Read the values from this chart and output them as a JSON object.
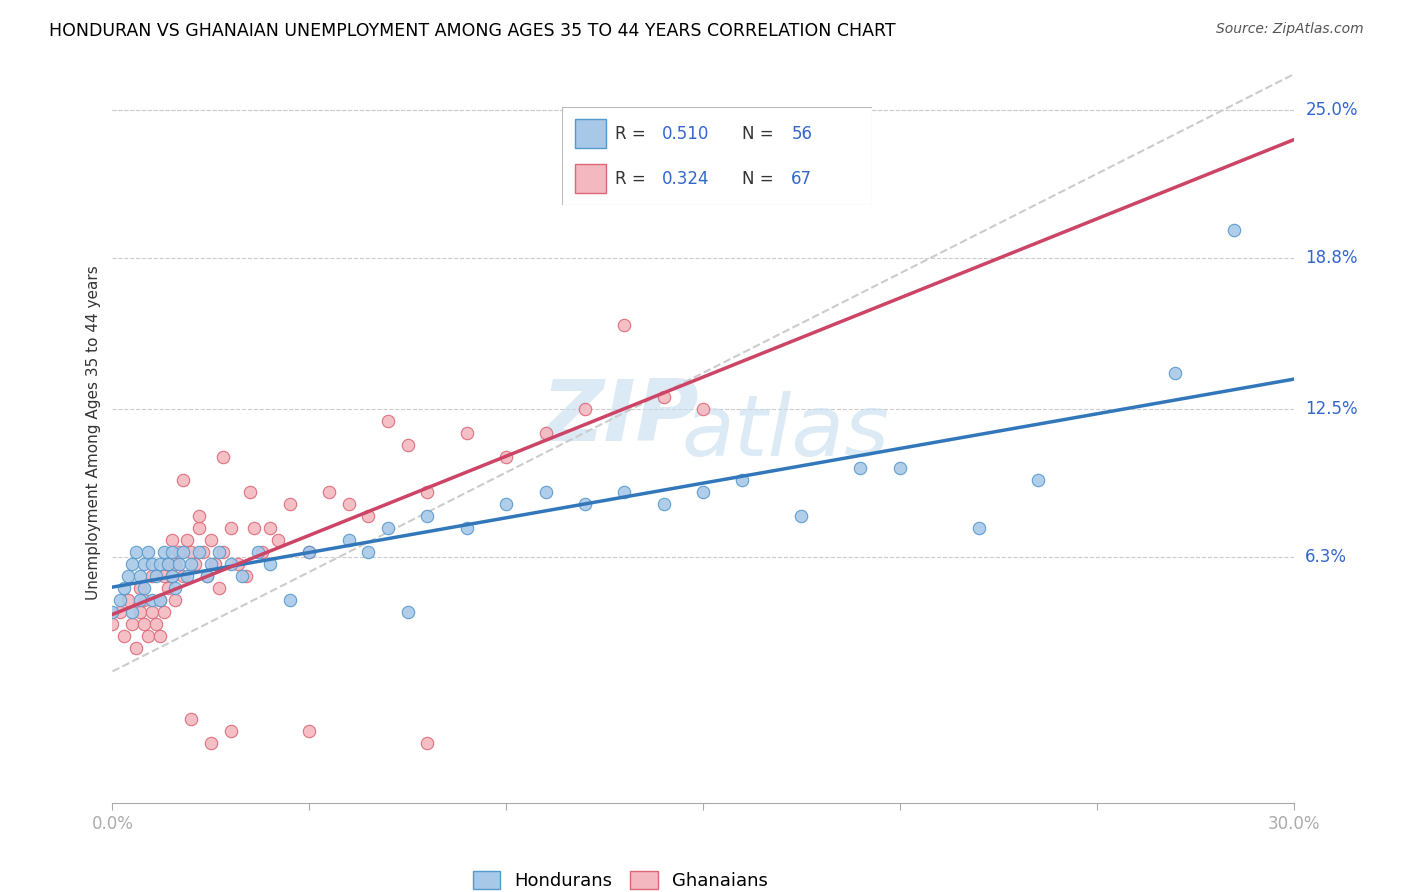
{
  "title": "HONDURAN VS GHANAIAN UNEMPLOYMENT AMONG AGES 35 TO 44 YEARS CORRELATION CHART",
  "source": "Source: ZipAtlas.com",
  "ylabel": "Unemployment Among Ages 35 to 44 years",
  "xlim": [
    0.0,
    0.3
  ],
  "ylim": [
    -0.04,
    0.27
  ],
  "y_tick_labels_right": [
    "25.0%",
    "18.8%",
    "12.5%",
    "6.3%"
  ],
  "y_tick_values_right": [
    0.25,
    0.188,
    0.125,
    0.063
  ],
  "honduran_color": "#a8c8e8",
  "ghanaian_color": "#f4b8c0",
  "honduran_edge_color": "#5599cc",
  "ghanaian_edge_color": "#dd6677",
  "honduran_line_color": "#3377bb",
  "ghanaian_line_color": "#cc4466",
  "diagonal_color": "#cccccc",
  "legend_text_color": "#3366cc",
  "R_honduran": "0.510",
  "N_honduran": "56",
  "R_ghanaian": "0.324",
  "N_ghanaian": "67",
  "watermark": "ZIPatlas",
  "honduran_scatter_x": [
    0.0,
    0.002,
    0.003,
    0.004,
    0.005,
    0.005,
    0.006,
    0.007,
    0.007,
    0.008,
    0.008,
    0.009,
    0.01,
    0.01,
    0.011,
    0.012,
    0.012,
    0.013,
    0.014,
    0.015,
    0.015,
    0.016,
    0.017,
    0.018,
    0.019,
    0.02,
    0.022,
    0.024,
    0.025,
    0.027,
    0.03,
    0.033,
    0.037,
    0.04,
    0.045,
    0.05,
    0.06,
    0.065,
    0.07,
    0.075,
    0.08,
    0.09,
    0.1,
    0.11,
    0.12,
    0.13,
    0.14,
    0.15,
    0.16,
    0.175,
    0.19,
    0.2,
    0.22,
    0.235,
    0.27,
    0.285
  ],
  "honduran_scatter_y": [
    0.04,
    0.045,
    0.05,
    0.055,
    0.06,
    0.04,
    0.065,
    0.055,
    0.045,
    0.06,
    0.05,
    0.065,
    0.06,
    0.045,
    0.055,
    0.06,
    0.045,
    0.065,
    0.06,
    0.055,
    0.065,
    0.05,
    0.06,
    0.065,
    0.055,
    0.06,
    0.065,
    0.055,
    0.06,
    0.065,
    0.06,
    0.055,
    0.065,
    0.06,
    0.045,
    0.065,
    0.07,
    0.065,
    0.075,
    0.04,
    0.08,
    0.075,
    0.085,
    0.09,
    0.085,
    0.09,
    0.085,
    0.09,
    0.095,
    0.08,
    0.1,
    0.1,
    0.075,
    0.095,
    0.14,
    0.2
  ],
  "ghanaian_scatter_x": [
    0.0,
    0.002,
    0.003,
    0.004,
    0.005,
    0.006,
    0.007,
    0.007,
    0.008,
    0.008,
    0.009,
    0.01,
    0.01,
    0.011,
    0.012,
    0.012,
    0.013,
    0.013,
    0.014,
    0.014,
    0.015,
    0.015,
    0.016,
    0.016,
    0.017,
    0.018,
    0.019,
    0.02,
    0.021,
    0.022,
    0.023,
    0.024,
    0.025,
    0.026,
    0.027,
    0.028,
    0.03,
    0.032,
    0.034,
    0.036,
    0.038,
    0.04,
    0.045,
    0.05,
    0.055,
    0.06,
    0.065,
    0.07,
    0.075,
    0.08,
    0.09,
    0.1,
    0.11,
    0.12,
    0.13,
    0.14,
    0.15,
    0.05,
    0.08,
    0.02,
    0.025,
    0.03,
    0.018,
    0.022,
    0.028,
    0.035,
    0.042
  ],
  "ghanaian_scatter_y": [
    0.035,
    0.04,
    0.03,
    0.045,
    0.035,
    0.025,
    0.04,
    0.05,
    0.045,
    0.035,
    0.03,
    0.04,
    0.055,
    0.035,
    0.045,
    0.03,
    0.055,
    0.04,
    0.05,
    0.06,
    0.055,
    0.07,
    0.06,
    0.045,
    0.065,
    0.055,
    0.07,
    0.065,
    0.06,
    0.075,
    0.065,
    0.055,
    0.07,
    0.06,
    0.05,
    0.065,
    0.075,
    0.06,
    0.055,
    0.075,
    0.065,
    0.075,
    0.085,
    0.065,
    0.09,
    0.085,
    0.08,
    0.12,
    0.11,
    0.09,
    0.115,
    0.105,
    0.115,
    0.125,
    0.16,
    0.13,
    0.125,
    -0.01,
    -0.015,
    -0.005,
    -0.015,
    -0.01,
    0.095,
    0.08,
    0.105,
    0.09,
    0.07
  ]
}
